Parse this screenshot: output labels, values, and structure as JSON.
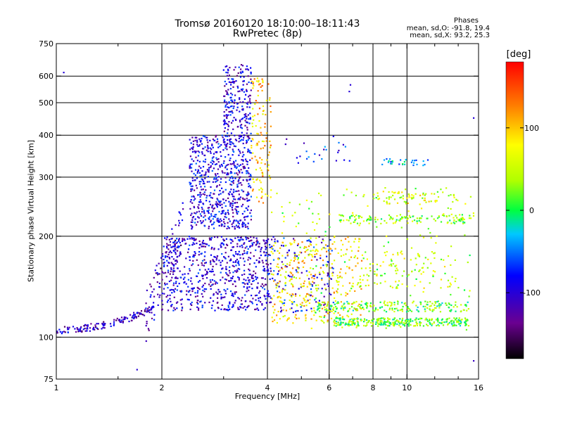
{
  "title": {
    "line1": "Tromsø 20160120 18:10:00–18:11:43",
    "line2": "RwPretec (8p)"
  },
  "stats": {
    "heading": "Phases",
    "o_mode": "mean, sd,O: -91.8, 19.4",
    "x_mode": "mean, sd,X:  93.2, 25.3"
  },
  "colorbar": {
    "label": "[deg]",
    "range": [
      -180,
      180
    ],
    "ticks": [
      {
        "value": 100,
        "label": "100"
      },
      {
        "value": 0,
        "label": "0"
      },
      {
        "value": -100,
        "label": "-100"
      }
    ],
    "colormap": "rainbow (black-purple-blue-cyan-green-yellow-red)"
  },
  "chart_data": {
    "type": "scatter",
    "title": "Tromsø 20160120 18:10:00–18:11:43",
    "subtitle": "RwPretec (8p)",
    "xlabel": "Frequency [MHz]",
    "ylabel": "Stationary phase Virtual Height [km]",
    "x_scale": "log",
    "y_scale": "log",
    "xlim": [
      1,
      16
    ],
    "ylim": [
      75,
      750
    ],
    "xticks": [
      {
        "value": 1,
        "label": "1"
      },
      {
        "value": 2,
        "label": "2"
      },
      {
        "value": 4,
        "label": "4"
      },
      {
        "value": 6,
        "label": "6"
      },
      {
        "value": 8,
        "label": "8"
      },
      {
        "value": 10,
        "label": "10"
      },
      {
        "value": 16,
        "label": "16"
      }
    ],
    "x_gridlines": [
      2,
      4,
      6,
      8,
      10
    ],
    "x_minor": [
      1.5,
      3,
      5,
      7,
      9,
      12,
      14
    ],
    "yticks": [
      {
        "value": 75,
        "label": "75"
      },
      {
        "value": 100,
        "label": "100"
      },
      {
        "value": 200,
        "label": "200"
      },
      {
        "value": 300,
        "label": "300"
      },
      {
        "value": 400,
        "label": "400"
      },
      {
        "value": 500,
        "label": "500"
      },
      {
        "value": 600,
        "label": "600"
      },
      {
        "value": 750,
        "label": "750"
      }
    ],
    "y_gridlines": [
      100,
      200,
      300,
      400,
      500,
      600
    ],
    "grid": true,
    "color_encoding": "phase [deg]",
    "clusters": [
      {
        "id": "low-trace",
        "x": [
          1.0,
          1.9
        ],
        "y": [
          105,
          122
        ],
        "phase": -110,
        "count": 150
      },
      {
        "id": "rising-trace",
        "x": [
          1.8,
          2.3
        ],
        "y": [
          115,
          220
        ],
        "phase": -110,
        "count": 90
      },
      {
        "id": "o-cusp-broad",
        "x": [
          2.0,
          4.1
        ],
        "y": [
          120,
          200
        ],
        "phase": -100,
        "count": 700
      },
      {
        "id": "o-upper-blob",
        "x": [
          2.4,
          3.6
        ],
        "y": [
          210,
          400
        ],
        "phase": -95,
        "count": 650
      },
      {
        "id": "o-top-spike",
        "x": [
          3.0,
          3.6
        ],
        "y": [
          380,
          650
        ],
        "phase": -100,
        "count": 220
      },
      {
        "id": "x-top-spike",
        "x": [
          3.6,
          4.1
        ],
        "y": [
          250,
          600
        ],
        "phase": 100,
        "count": 120
      },
      {
        "id": "o-layer-150",
        "x": [
          3.9,
          6.2
        ],
        "y": [
          118,
          200
        ],
        "phase": -90,
        "count": 160
      },
      {
        "id": "x-mid-region",
        "x": [
          4.1,
          7.5
        ],
        "y": [
          110,
          200
        ],
        "phase": 90,
        "count": 320
      },
      {
        "id": "scatter-mid",
        "x": [
          4.1,
          15.5
        ],
        "y": [
          105,
          280
        ],
        "phase": 40,
        "count": 200
      },
      {
        "id": "layer-110",
        "x": [
          6.2,
          15.0
        ],
        "y": [
          108,
          114
        ],
        "phase": 20,
        "count": 300
      },
      {
        "id": "layer-125",
        "x": [
          5.5,
          15.0
        ],
        "y": [
          119,
          128
        ],
        "phase": 20,
        "count": 200
      },
      {
        "id": "layer-225",
        "x": [
          6.4,
          15.5
        ],
        "y": [
          218,
          232
        ],
        "phase": 30,
        "count": 130
      },
      {
        "id": "layer-260",
        "x": [
          8.0,
          14.0
        ],
        "y": [
          248,
          272
        ],
        "phase": 60,
        "count": 70
      },
      {
        "id": "layer-330",
        "x": [
          8.5,
          11.5
        ],
        "y": [
          325,
          340
        ],
        "phase": -30,
        "count": 30
      },
      {
        "id": "high-scatter",
        "x": [
          4.5,
          7.2
        ],
        "y": [
          330,
          400
        ],
        "phase": -80,
        "count": 25
      },
      {
        "id": "layer-150-high",
        "x": [
          7.5,
          14.0
        ],
        "y": [
          140,
          180
        ],
        "phase": 50,
        "count": 90
      }
    ],
    "notable_points": [
      {
        "x": 1.05,
        "y": 615,
        "phase": -100
      },
      {
        "x": 6.9,
        "y": 565,
        "phase": -100
      },
      {
        "x": 6.85,
        "y": 540,
        "phase": -100
      },
      {
        "x": 15.5,
        "y": 450,
        "phase": -100
      },
      {
        "x": 15.5,
        "y": 85,
        "phase": -110
      },
      {
        "x": 1.7,
        "y": 80,
        "phase": -100
      }
    ]
  }
}
